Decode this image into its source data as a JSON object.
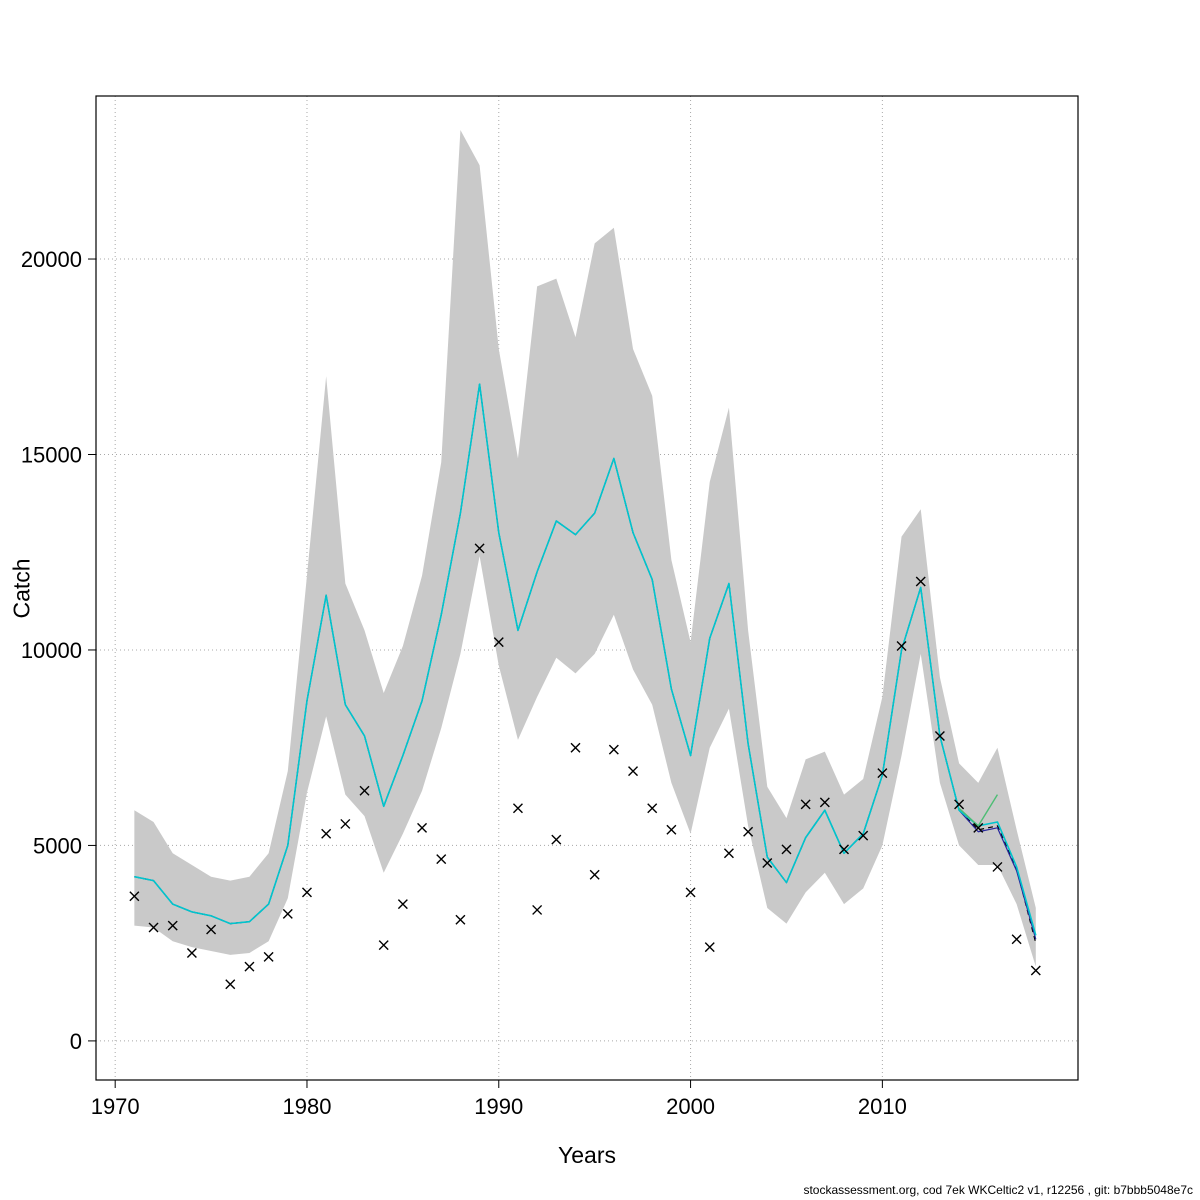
{
  "footer": {
    "text": "stockassessment.org, cod 7ek WKCeltic2 v1, r12256 , git: b7bbb5048e7c"
  },
  "chart_data": {
    "type": "line",
    "title": "",
    "xlabel": "Years",
    "ylabel": "Catch",
    "axes": {
      "xlim": [
        1969.0,
        2020.2
      ],
      "ylim": [
        -1000,
        24170
      ],
      "x_ticks": [
        1970,
        1980,
        1990,
        2000,
        2010
      ],
      "x_tick_labels": [
        "1970",
        "1980",
        "1990",
        "2000",
        "2010"
      ],
      "y_ticks": [
        0,
        5000,
        10000,
        15000,
        20000
      ],
      "y_tick_labels": [
        "0",
        "5000",
        "10000",
        "15000",
        "20000"
      ],
      "grid": true,
      "grid_color": "#a8a8a8",
      "legend": "none"
    },
    "years": [
      1971,
      1972,
      1973,
      1974,
      1975,
      1976,
      1977,
      1978,
      1979,
      1980,
      1981,
      1982,
      1983,
      1984,
      1985,
      1986,
      1987,
      1988,
      1989,
      1990,
      1991,
      1992,
      1993,
      1994,
      1995,
      1996,
      1997,
      1998,
      1999,
      2000,
      2001,
      2002,
      2003,
      2004,
      2005,
      2006,
      2007,
      2008,
      2009,
      2010,
      2011,
      2012,
      2013,
      2014,
      2015,
      2016,
      2017,
      2018
    ],
    "band": {
      "name": "confidence-band",
      "color": "#c9c9c9",
      "lower": [
        2950,
        2900,
        2550,
        2400,
        2300,
        2200,
        2250,
        2550,
        3650,
        6350,
        8300,
        6300,
        5750,
        4300,
        5300,
        6400,
        8000,
        9900,
        12400,
        9600,
        7700,
        8800,
        9800,
        9400,
        9900,
        10900,
        9500,
        8600,
        6600,
        5300,
        7500,
        8500,
        5500,
        3400,
        3000,
        3800,
        4300,
        3500,
        3900,
        5000,
        7300,
        9900,
        6600,
        5000,
        4500,
        4500,
        3500,
        1900
      ],
      "upper": [
        5900,
        5600,
        4800,
        4500,
        4200,
        4100,
        4200,
        4800,
        6900,
        11900,
        17000,
        11700,
        10500,
        8900,
        10100,
        11900,
        14800,
        23300,
        22400,
        17700,
        14900,
        19300,
        19500,
        18000,
        20400,
        20800,
        17700,
        16500,
        12300,
        10200,
        14300,
        16200,
        10500,
        6500,
        5700,
        7200,
        7400,
        6300,
        6700,
        8800,
        12900,
        13600,
        9300,
        7100,
        6600,
        7500,
        5400,
        3400
      ]
    },
    "series": [
      {
        "name": "fitted-catch-dashed",
        "color": "#000000",
        "dash": true,
        "width": 1.2,
        "x": [
          1971,
          1972,
          1973,
          1974,
          1975,
          1976,
          1977,
          1978,
          1979,
          1980,
          1981,
          1982,
          1983,
          1984,
          1985,
          1986,
          1987,
          1988,
          1989,
          1990,
          1991,
          1992,
          1993,
          1994,
          1995,
          1996,
          1997,
          1998,
          1999,
          2000,
          2001,
          2002,
          2003,
          2004,
          2005,
          2006,
          2007,
          2008,
          2009,
          2010,
          2011,
          2012,
          2013,
          2014,
          2015,
          2016,
          2017,
          2018
        ],
        "values": [
          4200,
          4100,
          3500,
          3300,
          3200,
          3000,
          3050,
          3500,
          5000,
          8700,
          11400,
          8600,
          7800,
          6000,
          7300,
          8700,
          10900,
          13500,
          16800,
          13000,
          10500,
          12000,
          13300,
          12950,
          13500,
          14900,
          13000,
          11800,
          9000,
          7300,
          10300,
          11700,
          7600,
          4700,
          4050,
          5200,
          5900,
          4800,
          5300,
          6800,
          10000,
          11600,
          7800,
          5900,
          5400,
          5500,
          4400,
          2500
        ]
      },
      {
        "name": "fitted-catch-navy",
        "color": "#26269c",
        "dash": false,
        "width": 1.2,
        "x": [
          1971,
          1972,
          1973,
          1974,
          1975,
          1976,
          1977,
          1978,
          1979,
          1980,
          1981,
          1982,
          1983,
          1984,
          1985,
          1986,
          1987,
          1988,
          1989,
          1990,
          1991,
          1992,
          1993,
          1994,
          1995,
          1996,
          1997,
          1998,
          1999,
          2000,
          2001,
          2002,
          2003,
          2004,
          2005,
          2006,
          2007,
          2008,
          2009,
          2010,
          2011,
          2012,
          2013,
          2014,
          2015,
          2016,
          2017,
          2018
        ],
        "values": [
          4200,
          4100,
          3500,
          3300,
          3200,
          3000,
          3050,
          3500,
          5000,
          8700,
          11400,
          8600,
          7800,
          6000,
          7300,
          8700,
          10900,
          13500,
          16800,
          13000,
          10500,
          12000,
          13300,
          12950,
          13500,
          14900,
          13000,
          11800,
          9000,
          7300,
          10300,
          11700,
          7600,
          4700,
          4050,
          5200,
          5900,
          4800,
          5300,
          6800,
          10000,
          11600,
          7800,
          5900,
          5350,
          5450,
          4350,
          2600
        ]
      },
      {
        "name": "fitted-catch-cyan",
        "color": "#00c5cd",
        "dash": false,
        "width": 1.6,
        "x": [
          1971,
          1972,
          1973,
          1974,
          1975,
          1976,
          1977,
          1978,
          1979,
          1980,
          1981,
          1982,
          1983,
          1984,
          1985,
          1986,
          1987,
          1988,
          1989,
          1990,
          1991,
          1992,
          1993,
          1994,
          1995,
          1996,
          1997,
          1998,
          1999,
          2000,
          2001,
          2002,
          2003,
          2004,
          2005,
          2006,
          2007,
          2008,
          2009,
          2010,
          2011,
          2012,
          2013,
          2014,
          2015,
          2016,
          2017,
          2018
        ],
        "values": [
          4200,
          4100,
          3500,
          3300,
          3200,
          3000,
          3050,
          3500,
          5000,
          8700,
          11400,
          8600,
          7800,
          6000,
          7300,
          8700,
          10900,
          13500,
          16800,
          13000,
          10500,
          12000,
          13300,
          12950,
          13500,
          14900,
          13000,
          11800,
          9000,
          7300,
          10300,
          11700,
          7600,
          4700,
          4050,
          5200,
          5900,
          4800,
          5300,
          6800,
          10000,
          11600,
          7800,
          5900,
          5500,
          5600,
          4450,
          2700
        ]
      },
      {
        "name": "retro-green",
        "color": "#4dbd74",
        "dash": false,
        "width": 1.4,
        "x": [
          2014,
          2015,
          2016
        ],
        "values": [
          5950,
          5500,
          6300
        ]
      }
    ],
    "observed": {
      "name": "observed-catch",
      "marker": "x",
      "color": "#000000",
      "values": [
        3700,
        2900,
        2950,
        2250,
        2850,
        1450,
        1900,
        2150,
        3250,
        3800,
        5300,
        5550,
        6400,
        2450,
        3500,
        5450,
        4650,
        3100,
        12600,
        10200,
        5950,
        3350,
        5150,
        7500,
        4250,
        7450,
        6900,
        5950,
        5400,
        3800,
        2400,
        4800,
        5350,
        4550,
        4900,
        6050,
        6100,
        4900,
        5250,
        6850,
        10100,
        11750,
        7800,
        6050,
        5450,
        4450,
        2600,
        1800
      ]
    }
  }
}
